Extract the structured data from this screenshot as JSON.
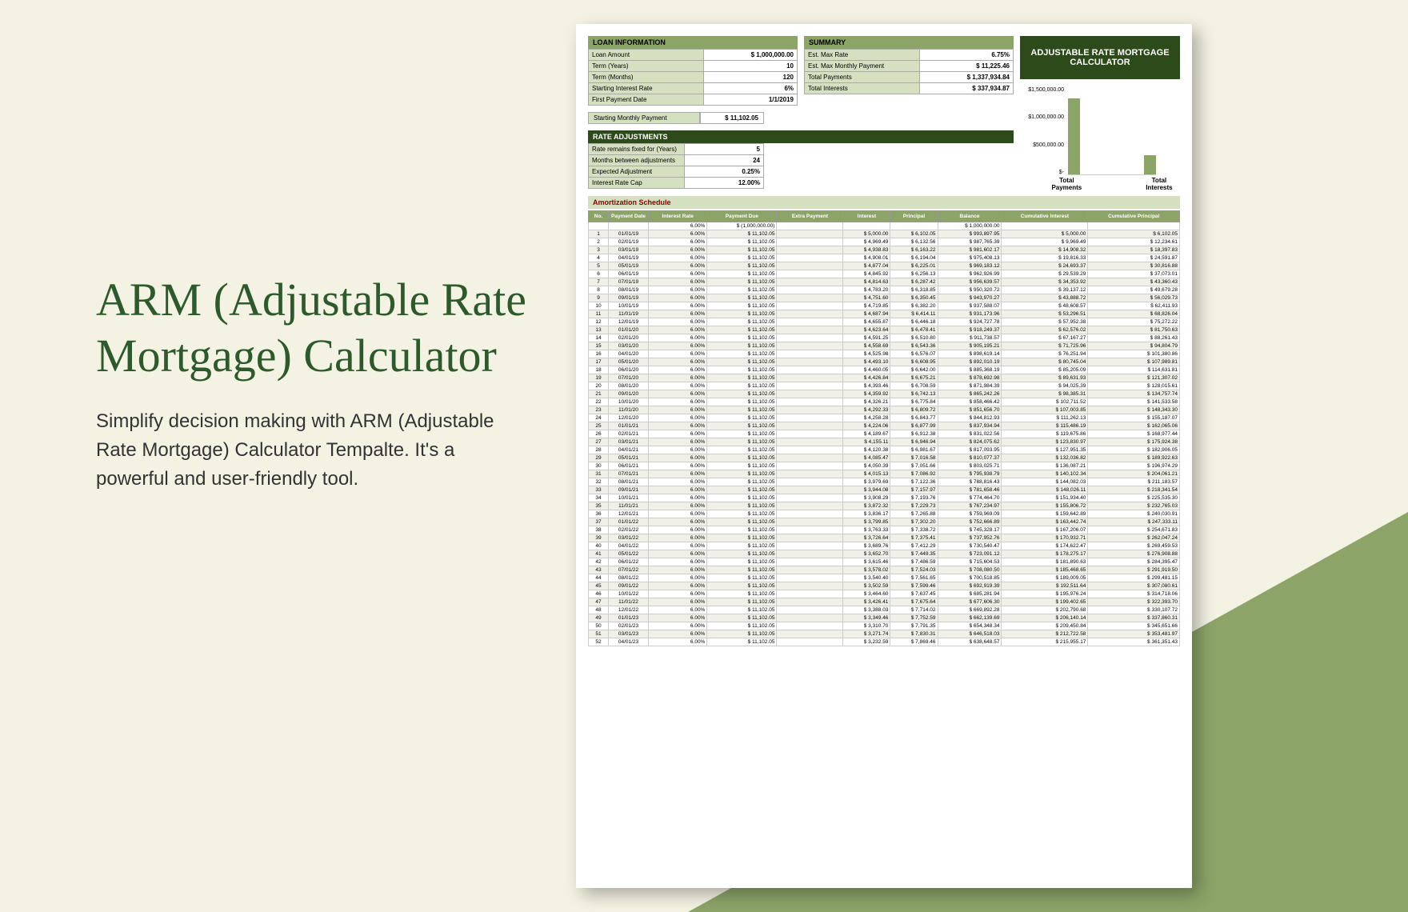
{
  "page_title": "ARM (Adjustable Rate Mortgage) Calculator",
  "page_subtitle": "Simplify decision making with ARM (Adjustable Rate Mortgage) Calculator Tempalte. It's a powerful and user-friendly tool.",
  "calc_title": "ADJUSTABLE RATE MORTGAGE CALCULATOR",
  "loan_header": "LOAN INFORMATION",
  "summary_header": "SUMMARY",
  "rate_adj_header": "RATE ADJUSTMENTS",
  "amort_header": "Amortization Schedule",
  "loan_info": [
    {
      "l": "Loan Amount",
      "v": "$ 1,000,000.00"
    },
    {
      "l": "Term (Years)",
      "v": "10"
    },
    {
      "l": "Term (Months)",
      "v": "120"
    },
    {
      "l": "Starting Interest Rate",
      "v": "6%"
    },
    {
      "l": "First Payment Date",
      "v": "1/1/2019"
    }
  ],
  "summary_info": [
    {
      "l": "Est. Max Rate",
      "v": "6.75%"
    },
    {
      "l": "Est. Max Monthly Payment",
      "v": "$ 11,225.46"
    },
    {
      "l": "Total Payments",
      "v": "$ 1,337,934.84"
    },
    {
      "l": "Total Interests",
      "v": "$ 337,934.87"
    }
  ],
  "monthly_label": "Starting Monthly Payment",
  "monthly_value": "$ 11,102.05",
  "rate_adj": [
    {
      "l": "Rate remains fixed for (Years)",
      "v": "5"
    },
    {
      "l": "Months between adjustments",
      "v": "24"
    },
    {
      "l": "Expected Adjustment",
      "v": "0.25%"
    },
    {
      "l": "Interest Rate Cap",
      "v": "12.00%"
    }
  ],
  "chart": {
    "y_labels": [
      "$1,500,000.00",
      "$1,000,000.00",
      "$500,000.00",
      "$-"
    ],
    "bars": [
      {
        "label": "Total Payments",
        "height": 95
      },
      {
        "label": "Total Interests",
        "height": 24
      }
    ],
    "bar_color": "#8ca468"
  },
  "amort_columns": [
    "No.",
    "Payment Date",
    "Interest Rate",
    "Payment Due",
    "Extra Payment",
    "Interest",
    "Principal",
    "Balance",
    "Cumulative Interest",
    "Cumulative Principal"
  ],
  "amort_rows": [
    [
      "",
      "",
      "6.00%",
      "$ (1,000,000.00)",
      "",
      "",
      "",
      "$ 1,000,000.00",
      "",
      ""
    ],
    [
      "1",
      "01/01/19",
      "6.00%",
      "$ 11,102.05",
      "",
      "$ 5,000.00",
      "$ 6,102.05",
      "$ 993,897.95",
      "$ 5,000.00",
      "$ 6,102.05"
    ],
    [
      "2",
      "02/01/19",
      "6.00%",
      "$ 11,102.05",
      "",
      "$ 4,969.49",
      "$ 6,132.56",
      "$ 987,765.39",
      "$ 9,969.49",
      "$ 12,234.61"
    ],
    [
      "3",
      "03/01/19",
      "6.00%",
      "$ 11,102.05",
      "",
      "$ 4,938.83",
      "$ 6,163.22",
      "$ 981,602.17",
      "$ 14,908.32",
      "$ 18,397.83"
    ],
    [
      "4",
      "04/01/19",
      "6.00%",
      "$ 11,102.05",
      "",
      "$ 4,908.01",
      "$ 6,194.04",
      "$ 975,408.13",
      "$ 19,816.33",
      "$ 24,591.87"
    ],
    [
      "5",
      "05/01/19",
      "6.00%",
      "$ 11,102.05",
      "",
      "$ 4,877.04",
      "$ 6,225.01",
      "$ 969,183.12",
      "$ 24,693.37",
      "$ 30,816.88"
    ],
    [
      "6",
      "06/01/19",
      "6.00%",
      "$ 11,102.05",
      "",
      "$ 4,845.92",
      "$ 6,256.13",
      "$ 962,926.99",
      "$ 29,539.29",
      "$ 37,073.01"
    ],
    [
      "7",
      "07/01/19",
      "6.00%",
      "$ 11,102.05",
      "",
      "$ 4,814.63",
      "$ 6,287.42",
      "$ 956,639.57",
      "$ 34,353.92",
      "$ 43,360.43"
    ],
    [
      "8",
      "08/01/19",
      "6.00%",
      "$ 11,102.05",
      "",
      "$ 4,783.20",
      "$ 6,318.85",
      "$ 950,320.72",
      "$ 39,137.12",
      "$ 49,679.28"
    ],
    [
      "9",
      "09/01/19",
      "6.00%",
      "$ 11,102.05",
      "",
      "$ 4,751.60",
      "$ 6,350.45",
      "$ 943,970.27",
      "$ 43,888.72",
      "$ 56,029.73"
    ],
    [
      "10",
      "10/01/19",
      "6.00%",
      "$ 11,102.05",
      "",
      "$ 4,719.85",
      "$ 6,382.20",
      "$ 937,588.07",
      "$ 48,608.57",
      "$ 62,411.93"
    ],
    [
      "11",
      "11/01/19",
      "6.00%",
      "$ 11,102.05",
      "",
      "$ 4,687.94",
      "$ 6,414.11",
      "$ 931,173.96",
      "$ 53,296.51",
      "$ 68,826.04"
    ],
    [
      "12",
      "12/01/19",
      "6.00%",
      "$ 11,102.05",
      "",
      "$ 4,655.87",
      "$ 6,446.18",
      "$ 924,727.78",
      "$ 57,952.38",
      "$ 75,272.22"
    ],
    [
      "13",
      "01/01/20",
      "6.00%",
      "$ 11,102.05",
      "",
      "$ 4,623.64",
      "$ 6,478.41",
      "$ 918,249.37",
      "$ 62,576.02",
      "$ 81,750.63"
    ],
    [
      "14",
      "02/01/20",
      "6.00%",
      "$ 11,102.05",
      "",
      "$ 4,591.25",
      "$ 6,510.80",
      "$ 911,738.57",
      "$ 67,167.27",
      "$ 88,261.43"
    ],
    [
      "15",
      "03/01/20",
      "6.00%",
      "$ 11,102.05",
      "",
      "$ 4,558.69",
      "$ 6,543.36",
      "$ 905,195.21",
      "$ 71,725.96",
      "$ 94,804.79"
    ],
    [
      "16",
      "04/01/20",
      "6.00%",
      "$ 11,102.05",
      "",
      "$ 4,525.98",
      "$ 6,576.07",
      "$ 898,619.14",
      "$ 76,251.94",
      "$ 101,380.86"
    ],
    [
      "17",
      "05/01/20",
      "6.00%",
      "$ 11,102.05",
      "",
      "$ 4,493.10",
      "$ 6,608.95",
      "$ 892,010.19",
      "$ 80,745.04",
      "$ 107,989.81"
    ],
    [
      "18",
      "06/01/20",
      "6.00%",
      "$ 11,102.05",
      "",
      "$ 4,460.05",
      "$ 6,642.00",
      "$ 885,368.19",
      "$ 85,205.09",
      "$ 114,631.81"
    ],
    [
      "19",
      "07/01/20",
      "6.00%",
      "$ 11,102.05",
      "",
      "$ 4,426.84",
      "$ 6,675.21",
      "$ 878,692.98",
      "$ 89,631.93",
      "$ 121,307.02"
    ],
    [
      "20",
      "08/01/20",
      "6.00%",
      "$ 11,102.05",
      "",
      "$ 4,393.46",
      "$ 6,708.59",
      "$ 871,984.39",
      "$ 94,025.39",
      "$ 128,015.61"
    ],
    [
      "21",
      "09/01/20",
      "6.00%",
      "$ 11,102.05",
      "",
      "$ 4,359.92",
      "$ 6,742.13",
      "$ 865,242.26",
      "$ 98,385.31",
      "$ 134,757.74"
    ],
    [
      "22",
      "10/01/20",
      "6.00%",
      "$ 11,102.05",
      "",
      "$ 4,326.21",
      "$ 6,775.84",
      "$ 858,466.42",
      "$ 102,711.52",
      "$ 141,533.58"
    ],
    [
      "23",
      "11/01/20",
      "6.00%",
      "$ 11,102.05",
      "",
      "$ 4,292.33",
      "$ 6,809.72",
      "$ 851,656.70",
      "$ 107,003.85",
      "$ 148,343.30"
    ],
    [
      "24",
      "12/01/20",
      "6.00%",
      "$ 11,102.05",
      "",
      "$ 4,258.28",
      "$ 6,843.77",
      "$ 844,812.93",
      "$ 111,262.13",
      "$ 155,187.07"
    ],
    [
      "25",
      "01/01/21",
      "6.00%",
      "$ 11,102.05",
      "",
      "$ 4,224.06",
      "$ 6,877.99",
      "$ 837,934.94",
      "$ 115,486.19",
      "$ 162,065.06"
    ],
    [
      "26",
      "02/01/21",
      "6.00%",
      "$ 11,102.05",
      "",
      "$ 4,189.67",
      "$ 6,912.38",
      "$ 831,022.56",
      "$ 119,675.86",
      "$ 168,977.44"
    ],
    [
      "27",
      "03/01/21",
      "6.00%",
      "$ 11,102.05",
      "",
      "$ 4,155.11",
      "$ 6,946.94",
      "$ 824,075.62",
      "$ 123,830.97",
      "$ 175,924.38"
    ],
    [
      "28",
      "04/01/21",
      "6.00%",
      "$ 11,102.05",
      "",
      "$ 4,120.38",
      "$ 6,981.67",
      "$ 817,093.95",
      "$ 127,951.35",
      "$ 182,906.05"
    ],
    [
      "29",
      "05/01/21",
      "6.00%",
      "$ 11,102.05",
      "",
      "$ 4,085.47",
      "$ 7,016.58",
      "$ 810,077.37",
      "$ 132,036.82",
      "$ 189,922.63"
    ],
    [
      "30",
      "06/01/21",
      "6.00%",
      "$ 11,102.05",
      "",
      "$ 4,050.39",
      "$ 7,051.66",
      "$ 803,025.71",
      "$ 136,087.21",
      "$ 196,974.29"
    ],
    [
      "31",
      "07/01/21",
      "6.00%",
      "$ 11,102.05",
      "",
      "$ 4,015.13",
      "$ 7,086.92",
      "$ 795,938.79",
      "$ 140,102.34",
      "$ 204,061.21"
    ],
    [
      "32",
      "08/01/21",
      "6.00%",
      "$ 11,102.05",
      "",
      "$ 3,979.69",
      "$ 7,122.36",
      "$ 788,816.43",
      "$ 144,082.03",
      "$ 211,183.57"
    ],
    [
      "33",
      "09/01/21",
      "6.00%",
      "$ 11,102.05",
      "",
      "$ 3,944.08",
      "$ 7,157.97",
      "$ 781,658.46",
      "$ 148,026.11",
      "$ 218,341.54"
    ],
    [
      "34",
      "10/01/21",
      "6.00%",
      "$ 11,102.05",
      "",
      "$ 3,908.29",
      "$ 7,193.76",
      "$ 774,464.70",
      "$ 151,934.40",
      "$ 225,535.30"
    ],
    [
      "35",
      "11/01/21",
      "6.00%",
      "$ 11,102.05",
      "",
      "$ 3,872.32",
      "$ 7,229.73",
      "$ 767,234.97",
      "$ 155,806.72",
      "$ 232,765.03"
    ],
    [
      "36",
      "12/01/21",
      "6.00%",
      "$ 11,102.05",
      "",
      "$ 3,836.17",
      "$ 7,265.88",
      "$ 759,969.09",
      "$ 159,642.89",
      "$ 240,030.91"
    ],
    [
      "37",
      "01/01/22",
      "6.00%",
      "$ 11,102.05",
      "",
      "$ 3,799.85",
      "$ 7,302.20",
      "$ 752,666.89",
      "$ 163,442.74",
      "$ 247,333.11"
    ],
    [
      "38",
      "02/01/22",
      "6.00%",
      "$ 11,102.05",
      "",
      "$ 3,763.33",
      "$ 7,338.72",
      "$ 745,328.17",
      "$ 167,206.07",
      "$ 254,671.83"
    ],
    [
      "39",
      "03/01/22",
      "6.00%",
      "$ 11,102.05",
      "",
      "$ 3,726.64",
      "$ 7,375.41",
      "$ 737,952.76",
      "$ 170,932.71",
      "$ 262,047.24"
    ],
    [
      "40",
      "04/01/22",
      "6.00%",
      "$ 11,102.05",
      "",
      "$ 3,689.76",
      "$ 7,412.29",
      "$ 730,540.47",
      "$ 174,622.47",
      "$ 269,459.53"
    ],
    [
      "41",
      "05/01/22",
      "6.00%",
      "$ 11,102.05",
      "",
      "$ 3,652.70",
      "$ 7,449.35",
      "$ 723,091.12",
      "$ 178,275.17",
      "$ 276,908.88"
    ],
    [
      "42",
      "06/01/22",
      "6.00%",
      "$ 11,102.05",
      "",
      "$ 3,615.46",
      "$ 7,486.59",
      "$ 715,604.53",
      "$ 181,890.63",
      "$ 284,395.47"
    ],
    [
      "43",
      "07/01/22",
      "6.00%",
      "$ 11,102.05",
      "",
      "$ 3,578.02",
      "$ 7,524.03",
      "$ 708,080.50",
      "$ 185,468.65",
      "$ 291,919.50"
    ],
    [
      "44",
      "08/01/22",
      "6.00%",
      "$ 11,102.05",
      "",
      "$ 3,540.40",
      "$ 7,561.65",
      "$ 700,518.85",
      "$ 189,009.05",
      "$ 299,481.15"
    ],
    [
      "45",
      "09/01/22",
      "6.00%",
      "$ 11,102.05",
      "",
      "$ 3,502.59",
      "$ 7,599.46",
      "$ 692,919.39",
      "$ 192,511.64",
      "$ 307,080.61"
    ],
    [
      "46",
      "10/01/22",
      "6.00%",
      "$ 11,102.05",
      "",
      "$ 3,464.60",
      "$ 7,637.45",
      "$ 685,281.94",
      "$ 195,976.24",
      "$ 314,718.06"
    ],
    [
      "47",
      "11/01/22",
      "6.00%",
      "$ 11,102.05",
      "",
      "$ 3,426.41",
      "$ 7,675.64",
      "$ 677,606.30",
      "$ 199,402.65",
      "$ 322,393.70"
    ],
    [
      "48",
      "12/01/22",
      "6.00%",
      "$ 11,102.05",
      "",
      "$ 3,388.03",
      "$ 7,714.02",
      "$ 669,892.28",
      "$ 202,790.68",
      "$ 330,107.72"
    ],
    [
      "49",
      "01/01/23",
      "6.00%",
      "$ 11,102.05",
      "",
      "$ 3,349.46",
      "$ 7,752.59",
      "$ 662,139.69",
      "$ 206,140.14",
      "$ 337,860.31"
    ],
    [
      "50",
      "02/01/23",
      "6.00%",
      "$ 11,102.05",
      "",
      "$ 3,310.70",
      "$ 7,791.35",
      "$ 654,348.34",
      "$ 209,450.84",
      "$ 345,651.66"
    ],
    [
      "51",
      "03/01/23",
      "6.00%",
      "$ 11,102.05",
      "",
      "$ 3,271.74",
      "$ 7,830.31",
      "$ 646,518.03",
      "$ 212,722.58",
      "$ 353,481.97"
    ],
    [
      "52",
      "04/01/23",
      "6.00%",
      "$ 11,102.05",
      "",
      "$ 3,232.59",
      "$ 7,869.46",
      "$ 638,648.57",
      "$ 215,955.17",
      "$ 361,351.43"
    ]
  ]
}
